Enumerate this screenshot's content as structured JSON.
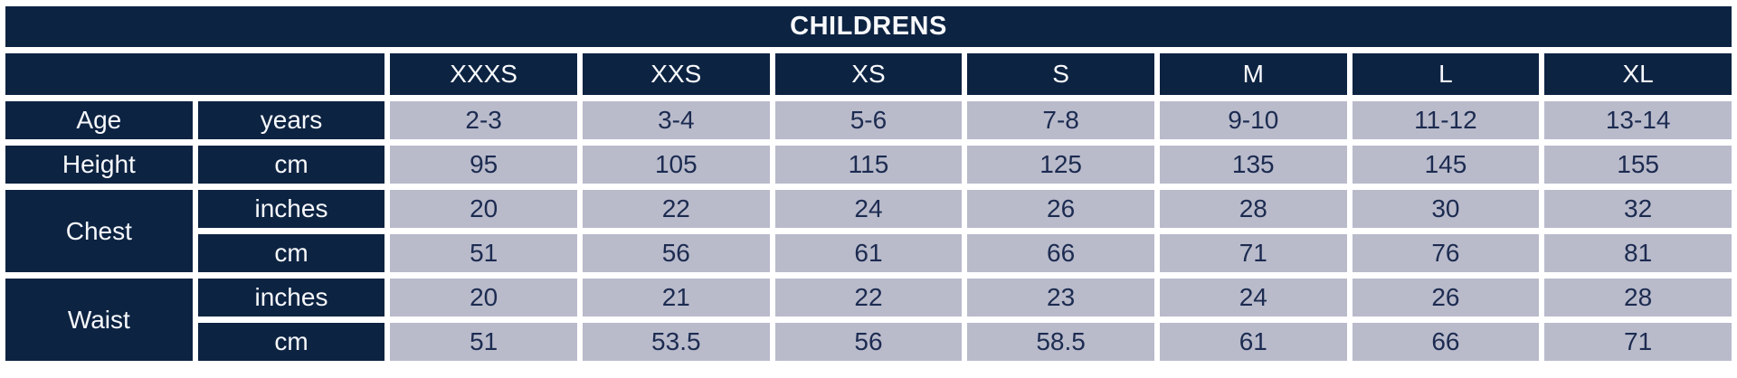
{
  "title": "CHILDRENS",
  "sizes": [
    "XXXS",
    "XXS",
    "XS",
    "S",
    "M",
    "L",
    "XL"
  ],
  "rows": [
    {
      "label": "Age",
      "rowspan": 1,
      "unit": "years",
      "values": [
        "2-3",
        "3-4",
        "5-6",
        "7-8",
        "9-10",
        "11-12",
        "13-14"
      ]
    },
    {
      "label": "Height",
      "rowspan": 1,
      "unit": "cm",
      "values": [
        "95",
        "105",
        "115",
        "125",
        "135",
        "145",
        "155"
      ]
    },
    {
      "label": "Chest",
      "rowspan": 2,
      "unit": "inches",
      "values": [
        "20",
        "22",
        "24",
        "26",
        "28",
        "30",
        "32"
      ]
    },
    {
      "unit": "cm",
      "values": [
        "51",
        "56",
        "61",
        "66",
        "71",
        "76",
        "81"
      ]
    },
    {
      "label": "Waist",
      "rowspan": 2,
      "unit": "inches",
      "values": [
        "20",
        "21",
        "22",
        "23",
        "24",
        "26",
        "28"
      ]
    },
    {
      "unit": "cm",
      "values": [
        "51",
        "53.5",
        "56",
        "58.5",
        "61",
        "66",
        "71"
      ]
    }
  ],
  "colors": {
    "header_navy": "#0d2342",
    "data_cell": "#b9bbcb",
    "text_on_navy": "#f7f9fc",
    "text_on_data": "#1c2b50",
    "gutter": "#ffffff"
  },
  "chart_data": {
    "type": "table",
    "title": "CHILDRENS",
    "columns": [
      "",
      "",
      "XXXS",
      "XXS",
      "XS",
      "S",
      "M",
      "L",
      "XL"
    ],
    "rows": [
      [
        "Age",
        "years",
        "2-3",
        "3-4",
        "5-6",
        "7-8",
        "9-10",
        "11-12",
        "13-14"
      ],
      [
        "Height",
        "cm",
        "95",
        "105",
        "115",
        "125",
        "135",
        "145",
        "155"
      ],
      [
        "Chest",
        "inches",
        "20",
        "22",
        "24",
        "26",
        "28",
        "30",
        "32"
      ],
      [
        "Chest",
        "cm",
        "51",
        "56",
        "61",
        "66",
        "71",
        "76",
        "81"
      ],
      [
        "Waist",
        "inches",
        "20",
        "21",
        "22",
        "23",
        "24",
        "26",
        "28"
      ],
      [
        "Waist",
        "cm",
        "51",
        "53.5",
        "56",
        "58.5",
        "61",
        "66",
        "71"
      ]
    ],
    "layout_hints": {
      "equal_columns": 9,
      "merged_label_rows": [
        "Chest spans inches+cm",
        "Waist spans inches+cm"
      ],
      "header_row_bg": "#0d2342",
      "data_row_bg": "#b9bbcb"
    }
  }
}
